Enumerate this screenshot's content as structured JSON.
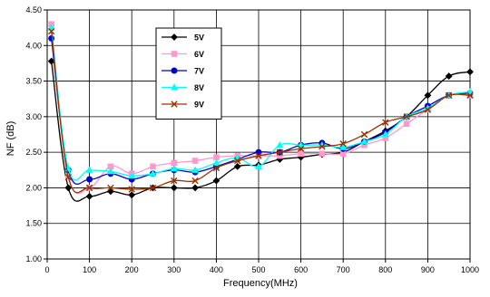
{
  "chart_data": {
    "type": "line",
    "title": "",
    "xlabel": "Frequency(MHz)",
    "ylabel": "NF (dB)",
    "xlim": [
      0,
      1000
    ],
    "ylim": [
      1.0,
      4.5
    ],
    "xticks": [
      0,
      100,
      200,
      300,
      400,
      500,
      600,
      700,
      800,
      900,
      1000
    ],
    "yticks": [
      "1.00",
      "1.50",
      "2.00",
      "2.50",
      "3.00",
      "3.50",
      "4.00",
      "4.50"
    ],
    "grid": true,
    "legend_position": "top-left-inside",
    "series": [
      {
        "name": "5V",
        "color": "#000000",
        "marker": "diamond",
        "x": [
          10,
          50,
          100,
          150,
          200,
          250,
          300,
          350,
          400,
          450,
          500,
          550,
          600,
          650,
          700,
          750,
          800,
          850,
          900,
          950,
          1000
        ],
        "y": [
          3.78,
          2.0,
          1.88,
          1.95,
          1.9,
          2.0,
          2.0,
          2.0,
          2.1,
          2.3,
          2.32,
          2.4,
          2.43,
          2.47,
          2.5,
          2.65,
          2.8,
          3.0,
          3.3,
          3.57,
          3.63
        ]
      },
      {
        "name": "6V",
        "color": "#ff99cc",
        "marker": "square",
        "x": [
          10,
          50,
          100,
          150,
          200,
          250,
          300,
          350,
          400,
          450,
          500,
          550,
          600,
          650,
          700,
          750,
          800,
          850,
          900,
          950,
          1000
        ],
        "y": [
          4.3,
          2.17,
          2.0,
          2.3,
          2.2,
          2.3,
          2.35,
          2.38,
          2.43,
          2.45,
          2.45,
          2.45,
          2.48,
          2.48,
          2.48,
          2.6,
          2.7,
          2.9,
          3.1,
          3.3,
          3.3
        ]
      },
      {
        "name": "7V",
        "color": "#0000cc",
        "marker": "circle",
        "x": [
          10,
          50,
          100,
          150,
          200,
          250,
          300,
          350,
          400,
          450,
          500,
          550,
          600,
          650,
          700,
          750,
          800,
          850,
          900,
          950,
          1000
        ],
        "y": [
          4.1,
          2.25,
          2.12,
          2.2,
          2.12,
          2.2,
          2.25,
          2.22,
          2.3,
          2.4,
          2.5,
          2.5,
          2.6,
          2.63,
          2.55,
          2.65,
          2.78,
          3.0,
          3.15,
          3.3,
          3.33
        ]
      },
      {
        "name": "8V",
        "color": "#00ffff",
        "marker": "triangle",
        "x": [
          10,
          50,
          100,
          150,
          200,
          250,
          300,
          350,
          400,
          450,
          500,
          550,
          600,
          650,
          700,
          750,
          800,
          850,
          900,
          950,
          1000
        ],
        "y": [
          4.25,
          2.27,
          2.25,
          2.23,
          2.17,
          2.2,
          2.27,
          2.25,
          2.35,
          2.42,
          2.3,
          2.6,
          2.6,
          2.6,
          2.57,
          2.65,
          2.75,
          3.0,
          3.12,
          3.3,
          3.35
        ]
      },
      {
        "name": "9V",
        "color": "#993300",
        "marker": "x",
        "x": [
          10,
          50,
          100,
          150,
          200,
          250,
          300,
          350,
          400,
          450,
          500,
          550,
          600,
          650,
          700,
          750,
          800,
          850,
          900,
          950,
          1000
        ],
        "y": [
          4.2,
          2.15,
          2.0,
          2.0,
          1.98,
          2.0,
          2.1,
          2.1,
          2.28,
          2.38,
          2.45,
          2.5,
          2.55,
          2.58,
          2.62,
          2.75,
          2.92,
          3.0,
          3.1,
          3.3,
          3.3
        ]
      }
    ]
  }
}
